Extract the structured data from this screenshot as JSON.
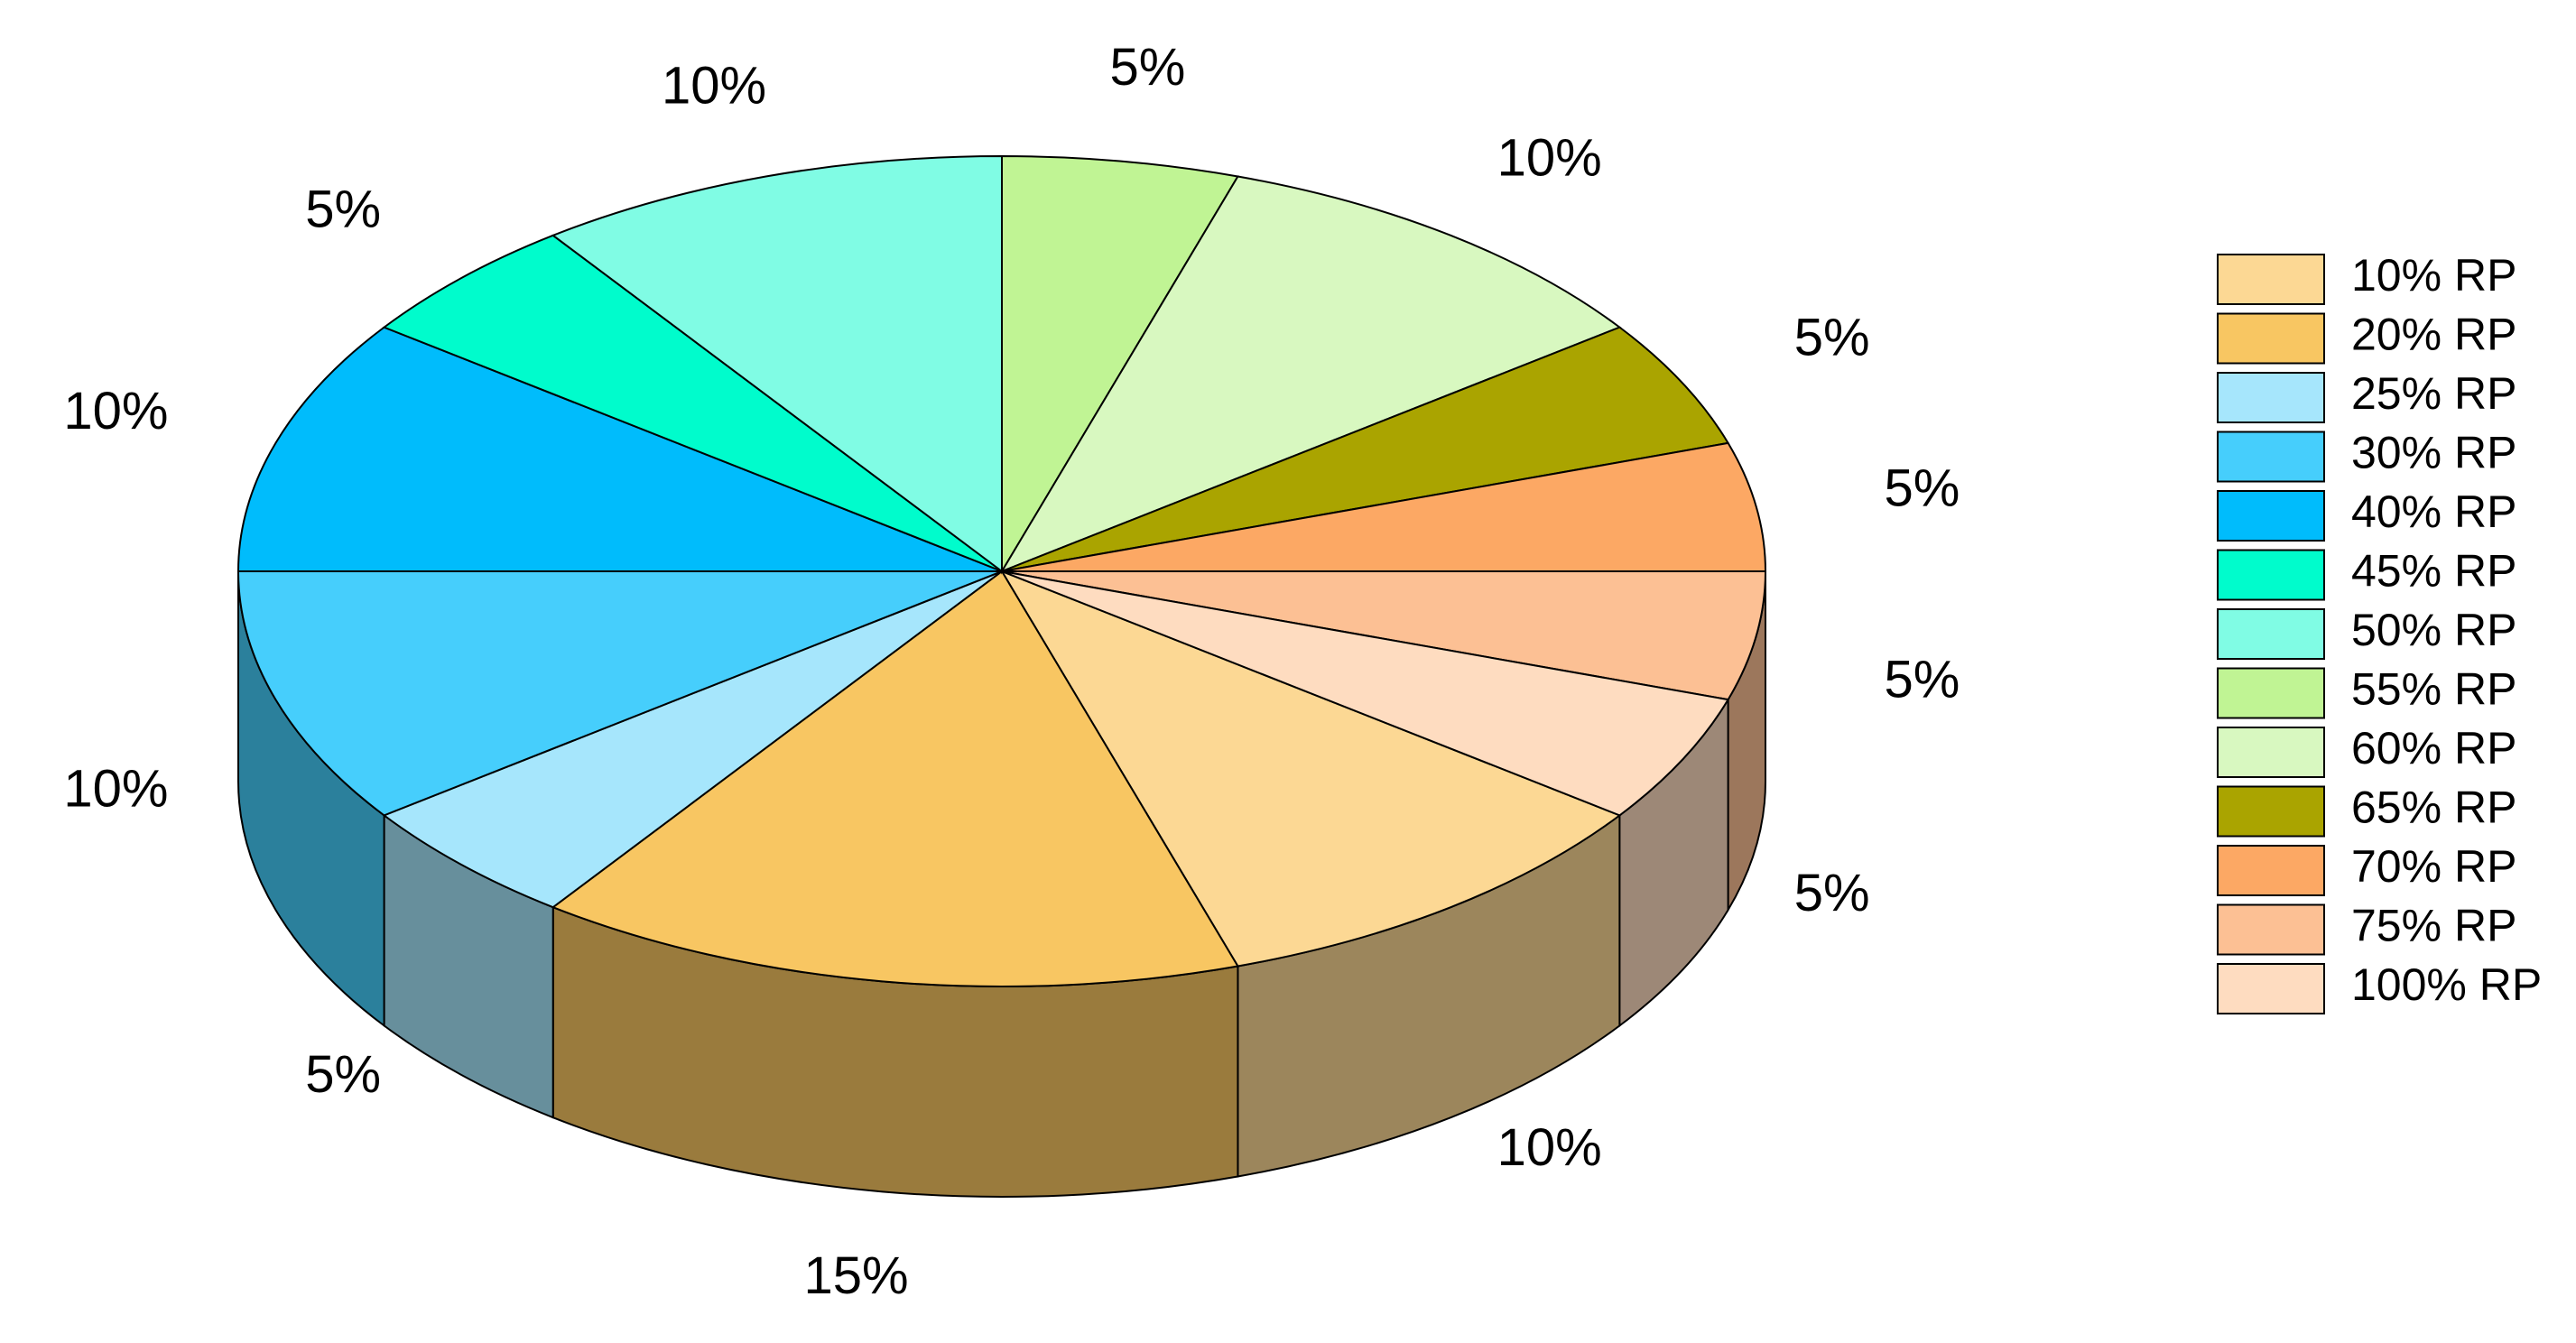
{
  "chart_data": {
    "type": "pie",
    "categories": [
      "10% RP",
      "20% RP",
      "25% RP",
      "30% RP",
      "40% RP",
      "45% RP",
      "50% RP",
      "55% RP",
      "60% RP",
      "65% RP",
      "70% RP",
      "75% RP",
      "100% RP"
    ],
    "values": [
      10,
      15,
      5,
      10,
      10,
      5,
      10,
      5,
      10,
      5,
      5,
      5,
      5
    ],
    "value_labels": [
      "10%",
      "15%",
      "5%",
      "10%",
      "10%",
      "5%",
      "10%",
      "5%",
      "10%",
      "5%",
      "5%",
      "5%",
      "5%"
    ],
    "colors": [
      "#fcd894",
      "#f8c662",
      "#a6e6fc",
      "#46cefc",
      "#00bcfc",
      "#00fccc",
      "#80fce4",
      "#c0f494",
      "#d8f8c0",
      "#aaa400",
      "#fca864",
      "#fcc094",
      "#fedcc0"
    ],
    "legend": "right"
  }
}
